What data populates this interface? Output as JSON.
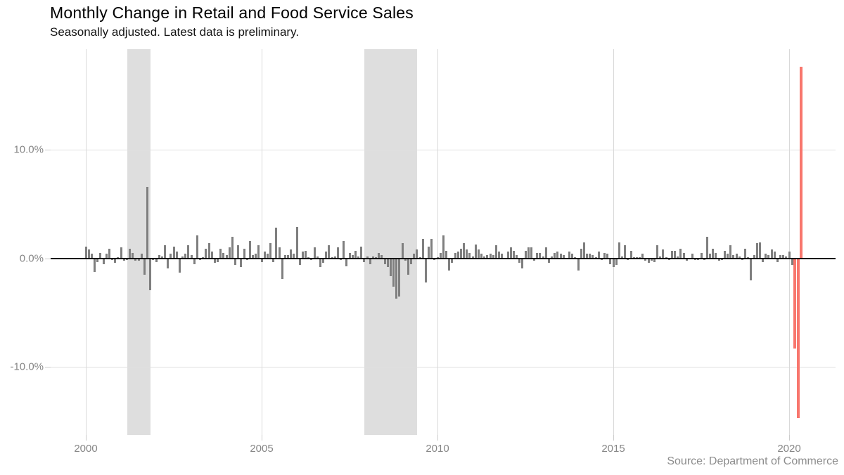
{
  "header": {
    "title": "Monthly Change in Retail and Food Service Sales",
    "subtitle": "Seasonally adjusted. Latest data is preliminary."
  },
  "footer": {
    "source": "Source: Department of Commerce"
  },
  "chart_data": {
    "type": "bar",
    "title": "Monthly Change in Retail and Food Service Sales",
    "subtitle": "Seasonally adjusted. Latest data is preliminary.",
    "source": "Source: Department of Commerce",
    "unit": "percent month-over-month change",
    "grid": "on",
    "legend": "none",
    "xlim": [
      1999.0,
      2021.32
    ],
    "ylim": [
      -16.3,
      19.3
    ],
    "x_axis": {
      "ticks": [
        {
          "value": 2000,
          "label": "2000"
        },
        {
          "value": 2005,
          "label": "2005"
        },
        {
          "value": 2010,
          "label": "2010"
        },
        {
          "value": 2015,
          "label": "2015"
        },
        {
          "value": 2020,
          "label": "2020"
        }
      ]
    },
    "y_axis": {
      "ticks": [
        {
          "value": 10,
          "label": "10.0%"
        },
        {
          "value": 0,
          "label": "0.0%"
        },
        {
          "value": -10,
          "label": "-10.0%"
        }
      ]
    },
    "recession_bands": [
      {
        "name": "2001-recession",
        "start": 2001.17,
        "end": 2001.83
      },
      {
        "name": "2008-09-recession",
        "start": 2007.92,
        "end": 2009.42
      }
    ],
    "colors": {
      "bar": "#7f7f7f",
      "highlight": "#f8766d",
      "band": "#dedede",
      "zero_line": "#000000"
    },
    "highlight_months": [
      "2020-03",
      "2020-04",
      "2020-05"
    ],
    "series_start": "2000-01",
    "series": [
      {
        "year": 2000,
        "values": [
          1.1,
          0.8,
          0.4,
          -1.2,
          -0.3,
          0.5,
          -0.5,
          0.4,
          0.9,
          -0.1,
          -0.4,
          0.1
        ]
      },
      {
        "year": 2001,
        "values": [
          1.0,
          -0.2,
          -0.1,
          0.9,
          0.5,
          -0.2,
          -0.2,
          0.4,
          -1.5,
          6.6,
          -2.9,
          -0.1
        ]
      },
      {
        "year": 2002,
        "values": [
          -0.3,
          0.3,
          0.2,
          1.2,
          -0.9,
          0.4,
          1.1,
          0.6,
          -1.3,
          0.2,
          0.4,
          1.2
        ]
      },
      {
        "year": 2003,
        "values": [
          0.3,
          -0.5,
          2.1,
          -0.1,
          0.1,
          0.9,
          1.4,
          0.6,
          -0.4,
          -0.3,
          0.9,
          0.5
        ]
      },
      {
        "year": 2004,
        "values": [
          0.3,
          1.0,
          2.0,
          -0.6,
          1.2,
          -0.8,
          0.9,
          -0.1,
          1.6,
          0.3,
          0.4,
          1.2
        ]
      },
      {
        "year": 2005,
        "values": [
          -0.3,
          0.6,
          0.4,
          1.4,
          -0.3,
          2.8,
          1.0,
          -1.9,
          0.3,
          0.3,
          0.8,
          0.4
        ]
      },
      {
        "year": 2006,
        "values": [
          2.9,
          -0.6,
          0.6,
          0.7,
          0.1,
          -0.1,
          1.0,
          0.2,
          -0.8,
          -0.4,
          0.6,
          1.2
        ]
      },
      {
        "year": 2007,
        "values": [
          0.1,
          0.2,
          1.0,
          -0.1,
          1.6,
          -0.7,
          0.5,
          0.3,
          0.7,
          0.2,
          1.1,
          -0.3
        ]
      },
      {
        "year": 2008,
        "values": [
          0.2,
          -0.5,
          0.2,
          0.1,
          0.5,
          0.3,
          -0.5,
          -0.8,
          -1.6,
          -2.6,
          -3.7,
          -3.5
        ]
      },
      {
        "year": 2009,
        "values": [
          1.4,
          -0.2,
          -1.5,
          -0.5,
          0.4,
          0.8,
          0.1,
          1.8,
          -2.2,
          1.1,
          1.8,
          -0.1
        ]
      },
      {
        "year": 2010,
        "values": [
          0.1,
          0.5,
          2.1,
          0.7,
          -1.1,
          -0.4,
          0.5,
          0.6,
          0.9,
          1.4,
          0.8,
          0.5
        ]
      },
      {
        "year": 2011,
        "values": [
          0.2,
          1.3,
          0.8,
          0.4,
          0.2,
          0.3,
          0.4,
          0.3,
          1.2,
          0.6,
          0.4,
          0.0
        ]
      },
      {
        "year": 2012,
        "values": [
          0.6,
          1.0,
          0.7,
          0.3,
          -0.4,
          -0.9,
          0.7,
          1.0,
          1.0,
          -0.2,
          0.5,
          0.5
        ]
      },
      {
        "year": 2013,
        "values": [
          0.2,
          1.0,
          -0.4,
          0.2,
          0.5,
          0.6,
          0.4,
          0.3,
          0.0,
          0.6,
          0.4,
          0.1
        ]
      },
      {
        "year": 2014,
        "values": [
          -1.1,
          0.9,
          1.5,
          0.4,
          0.4,
          0.3,
          0.1,
          0.6,
          -0.1,
          0.5,
          0.4,
          -0.5
        ]
      },
      {
        "year": 2015,
        "values": [
          -0.8,
          -0.6,
          1.5,
          0.2,
          1.2,
          -0.1,
          0.7,
          0.1,
          0.1,
          0.1,
          0.4,
          -0.2
        ]
      },
      {
        "year": 2016,
        "values": [
          -0.4,
          -0.2,
          -0.3,
          1.2,
          0.2,
          0.8,
          0.1,
          -0.1,
          0.7,
          0.7,
          0.2,
          0.9
        ]
      },
      {
        "year": 2017,
        "values": [
          0.5,
          -0.2,
          0.0,
          0.4,
          -0.1,
          -0.1,
          0.5,
          -0.1,
          2.0,
          0.4,
          0.9,
          0.5
        ]
      },
      {
        "year": 2018,
        "values": [
          -0.2,
          -0.1,
          0.7,
          0.4,
          1.2,
          0.3,
          0.4,
          0.2,
          -0.1,
          0.9,
          0.1,
          -2.0
        ]
      },
      {
        "year": 2019,
        "values": [
          0.3,
          1.4,
          1.5,
          -0.3,
          0.4,
          0.3,
          0.8,
          0.6,
          -0.3,
          0.3,
          0.3,
          0.2
        ]
      },
      {
        "year": 2020,
        "values": [
          0.6,
          -0.6,
          -8.3,
          -14.7,
          17.7
        ]
      }
    ],
    "notable_points": [
      {
        "month": "2001-10",
        "value": 6.6
      },
      {
        "month": "2020-03",
        "value": -8.3
      },
      {
        "month": "2020-04",
        "value": -14.7
      },
      {
        "month": "2020-05",
        "value": 17.7
      }
    ]
  }
}
